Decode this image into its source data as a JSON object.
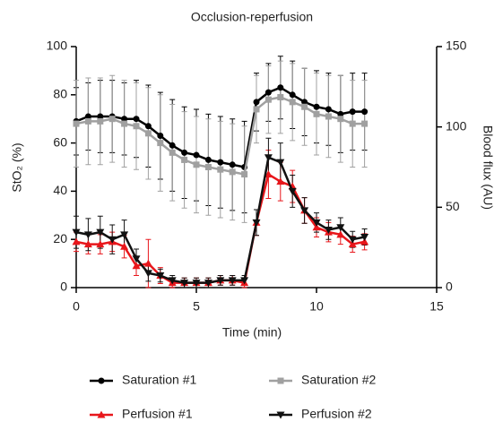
{
  "chart_data": {
    "type": "line",
    "title": "Occlusion-reperfusion",
    "x_label": "Time (min)",
    "y_label": "StO₂ (%)",
    "y2_label": "Blood flux (AU)",
    "x": [
      0,
      0.5,
      1,
      1.5,
      2,
      2.5,
      3,
      3.5,
      4,
      4.5,
      5,
      5.5,
      6,
      6.5,
      7,
      7.5,
      8,
      8.5,
      9,
      9.5,
      10,
      10.5,
      11,
      11.5,
      12
    ],
    "xlim": [
      0,
      15
    ],
    "xticks": [
      0,
      5,
      10,
      15
    ],
    "ylim": [
      0,
      100
    ],
    "yticks": [
      0,
      20,
      40,
      60,
      80,
      100
    ],
    "y2lim": [
      0,
      150
    ],
    "y2ticks": [
      0,
      50,
      100,
      150
    ],
    "series": [
      {
        "name": "Saturation #1",
        "color": "#000000",
        "marker": "circle",
        "values": [
          69,
          71,
          71,
          71,
          70,
          70,
          67,
          63,
          59,
          56,
          55,
          53,
          52,
          51,
          50,
          77,
          81,
          83,
          80,
          77,
          75,
          74,
          72,
          73,
          73
        ],
        "errors": [
          14,
          14,
          15,
          15,
          15,
          16,
          17,
          18,
          19,
          19,
          19,
          19,
          19,
          19,
          19,
          12,
          12,
          13,
          14,
          14,
          15,
          15,
          16,
          16,
          16
        ]
      },
      {
        "name": "Saturation #2",
        "color": "#a0a0a0",
        "marker": "square",
        "values": [
          68,
          69,
          69,
          70,
          68,
          67,
          64,
          60,
          56,
          53,
          51,
          50,
          49,
          48,
          47,
          74,
          78,
          79,
          77,
          75,
          72,
          71,
          70,
          68,
          68
        ],
        "errors": [
          18,
          18,
          18,
          18,
          18,
          18,
          19,
          20,
          20,
          20,
          20,
          20,
          20,
          20,
          20,
          14,
          14,
          15,
          16,
          16,
          17,
          17,
          18,
          18,
          18
        ]
      },
      {
        "name": "Perfusion #1",
        "color": "#e8161b",
        "marker": "triangle-up",
        "axis": "y2",
        "values": [
          28.5,
          27,
          27,
          28.5,
          25.5,
          13.5,
          15,
          7.5,
          3,
          3,
          3,
          3,
          4.5,
          4.5,
          3,
          40.5,
          70.5,
          66,
          63,
          48,
          37.5,
          34.5,
          33,
          27,
          28.5
        ],
        "errors": [
          6,
          6,
          6,
          6,
          7,
          6,
          15,
          5,
          3,
          3,
          3,
          3,
          3,
          3,
          3,
          8,
          15,
          12,
          10,
          8,
          6,
          6,
          6,
          5,
          5
        ]
      },
      {
        "name": "Perfusion #2",
        "color": "#111111",
        "marker": "triangle-down",
        "axis": "y2",
        "values": [
          34.5,
          33,
          34.5,
          30,
          33,
          18,
          9,
          7.5,
          4.5,
          3,
          3,
          3,
          4.5,
          4.5,
          4.5,
          40.5,
          81,
          78,
          60,
          48,
          40.5,
          36,
          37.5,
          30,
          31.5
        ],
        "errors": [
          10,
          10,
          10,
          9,
          9,
          6,
          5,
          4,
          3,
          3,
          3,
          3,
          3,
          3,
          3,
          8,
          12,
          12,
          10,
          8,
          6,
          6,
          6,
          5,
          5
        ]
      }
    ]
  }
}
